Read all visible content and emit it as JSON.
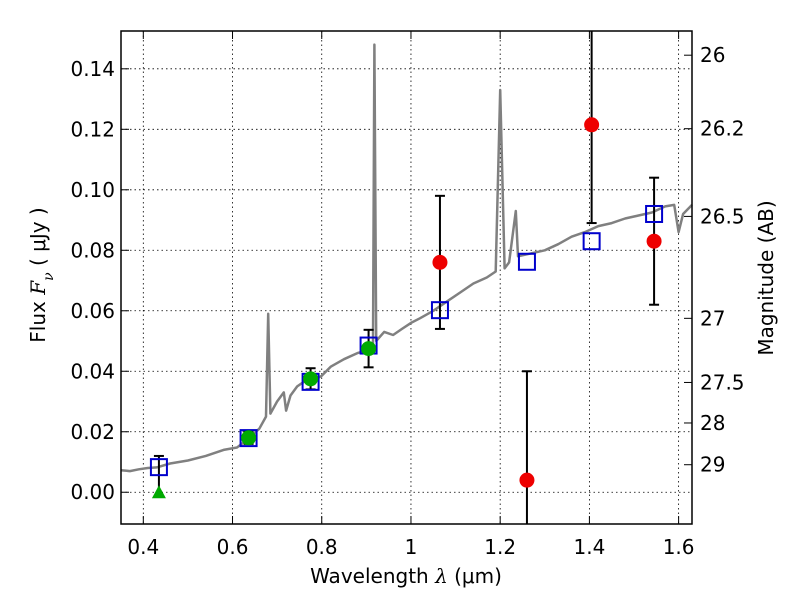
{
  "chart_data": {
    "type": "scatter",
    "xlabel": "Wavelength  λ (μm)",
    "ylabel": "Flux  Fν  ( μJy )",
    "y2label": "Magnitude (AB)",
    "xlim": [
      0.35,
      1.63
    ],
    "ylim": [
      -0.0105,
      0.1525
    ],
    "grid": true,
    "x_ticks": [
      {
        "v": 0.4,
        "label": "0.4"
      },
      {
        "v": 0.6,
        "label": "0.6"
      },
      {
        "v": 0.8,
        "label": "0.8"
      },
      {
        "v": 1.0,
        "label": "1"
      },
      {
        "v": 1.2,
        "label": "1.2"
      },
      {
        "v": 1.4,
        "label": "1.4"
      },
      {
        "v": 1.6,
        "label": "1.6"
      }
    ],
    "y_ticks": [
      {
        "v": 0.0,
        "label": "0.00"
      },
      {
        "v": 0.02,
        "label": "0.02"
      },
      {
        "v": 0.04,
        "label": "0.04"
      },
      {
        "v": 0.06,
        "label": "0.06"
      },
      {
        "v": 0.08,
        "label": "0.08"
      },
      {
        "v": 0.1,
        "label": "0.10"
      },
      {
        "v": 0.12,
        "label": "0.12"
      },
      {
        "v": 0.14,
        "label": "0.14"
      }
    ],
    "y2_ticks": [
      {
        "label": "26",
        "flux": 0.1445
      },
      {
        "label": "26.2",
        "flux": 0.1202
      },
      {
        "label": "26.5",
        "flux": 0.0912
      },
      {
        "label": "27",
        "flux": 0.0575
      },
      {
        "label": "27.5",
        "flux": 0.0363
      },
      {
        "label": "28",
        "flux": 0.0229
      },
      {
        "label": "29",
        "flux": 0.0091
      }
    ],
    "series": [
      {
        "kind": "model_spectrum",
        "color": "#808080",
        "points": [
          [
            0.35,
            0.0073
          ],
          [
            0.37,
            0.007
          ],
          [
            0.39,
            0.0076
          ],
          [
            0.41,
            0.008
          ],
          [
            0.43,
            0.0082
          ],
          [
            0.46,
            0.0095
          ],
          [
            0.5,
            0.0105
          ],
          [
            0.54,
            0.012
          ],
          [
            0.58,
            0.014
          ],
          [
            0.61,
            0.0148
          ],
          [
            0.63,
            0.017
          ],
          [
            0.66,
            0.021
          ],
          [
            0.675,
            0.025
          ],
          [
            0.68,
            0.059
          ],
          [
            0.685,
            0.026
          ],
          [
            0.7,
            0.03
          ],
          [
            0.715,
            0.033
          ],
          [
            0.72,
            0.027
          ],
          [
            0.73,
            0.032
          ],
          [
            0.745,
            0.035
          ],
          [
            0.76,
            0.0365
          ],
          [
            0.78,
            0.0368
          ],
          [
            0.8,
            0.0385
          ],
          [
            0.82,
            0.0415
          ],
          [
            0.85,
            0.044
          ],
          [
            0.88,
            0.046
          ],
          [
            0.905,
            0.047
          ],
          [
            0.915,
            0.049
          ],
          [
            0.918,
            0.148
          ],
          [
            0.922,
            0.05
          ],
          [
            0.94,
            0.053
          ],
          [
            0.96,
            0.052
          ],
          [
            0.98,
            0.054
          ],
          [
            1.0,
            0.056
          ],
          [
            1.02,
            0.0575
          ],
          [
            1.05,
            0.06
          ],
          [
            1.08,
            0.063
          ],
          [
            1.11,
            0.066
          ],
          [
            1.14,
            0.069
          ],
          [
            1.17,
            0.071
          ],
          [
            1.19,
            0.073
          ],
          [
            1.2,
            0.133
          ],
          [
            1.21,
            0.074
          ],
          [
            1.22,
            0.076
          ],
          [
            1.235,
            0.093
          ],
          [
            1.24,
            0.078
          ],
          [
            1.27,
            0.079
          ],
          [
            1.3,
            0.08
          ],
          [
            1.33,
            0.082
          ],
          [
            1.36,
            0.0845
          ],
          [
            1.39,
            0.086
          ],
          [
            1.42,
            0.088
          ],
          [
            1.45,
            0.089
          ],
          [
            1.48,
            0.0905
          ],
          [
            1.51,
            0.0915
          ],
          [
            1.54,
            0.0925
          ],
          [
            1.57,
            0.0945
          ],
          [
            1.59,
            0.095
          ],
          [
            1.6,
            0.086
          ],
          [
            1.61,
            0.092
          ],
          [
            1.63,
            0.095
          ]
        ]
      },
      {
        "kind": "model_fluxes",
        "marker": "open-square",
        "color": "#0000cc",
        "points": [
          [
            0.435,
            0.0083
          ],
          [
            0.636,
            0.0179
          ],
          [
            0.775,
            0.0365
          ],
          [
            0.905,
            0.0485
          ],
          [
            1.065,
            0.0602
          ],
          [
            1.26,
            0.0762
          ],
          [
            1.405,
            0.083
          ],
          [
            1.545,
            0.092
          ]
        ]
      },
      {
        "kind": "observed",
        "marker": "filled-circle",
        "color": "#00aa00",
        "points": [
          {
            "x": 0.636,
            "y": 0.018,
            "err": 0.002
          },
          {
            "x": 0.775,
            "y": 0.0375,
            "err": 0.0035
          },
          {
            "x": 0.905,
            "y": 0.0475,
            "err": 0.0062
          }
        ]
      },
      {
        "kind": "observed",
        "marker": "filled-circle",
        "color": "#ee0000",
        "points": [
          {
            "x": 1.065,
            "y": 0.076,
            "err": 0.022
          },
          {
            "x": 1.26,
            "y": 0.004,
            "err": 0.036
          },
          {
            "x": 1.405,
            "y": 0.1215,
            "err": 0.0325
          },
          {
            "x": 1.545,
            "y": 0.083,
            "err": 0.021
          }
        ]
      },
      {
        "kind": "upper_limit",
        "marker": "filled-triangle",
        "color": "#00aa00",
        "points": [
          {
            "x": 0.435,
            "y": 0.0,
            "err_hi": 0.012
          }
        ]
      }
    ]
  }
}
